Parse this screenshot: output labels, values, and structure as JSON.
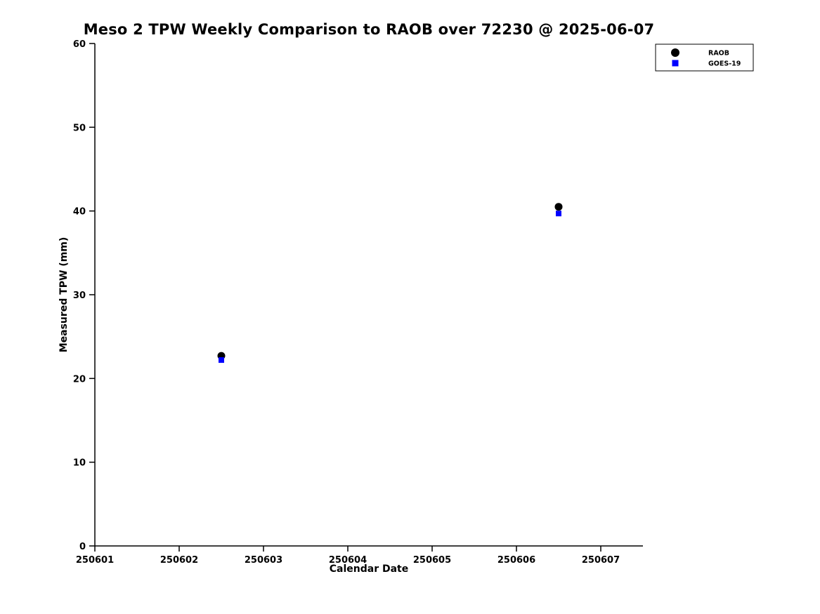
{
  "chart_data": {
    "type": "scatter",
    "title": "Meso 2 TPW Weekly Comparison to RAOB over 72230 @ 2025-06-07",
    "xlabel": "Calendar Date",
    "ylabel": "Measured TPW (mm)",
    "xlim": [
      250601,
      250607.5
    ],
    "ylim": [
      0,
      60
    ],
    "grid": false,
    "legend_position": "top-right",
    "xticks": [
      {
        "value": 250601,
        "label": "250601"
      },
      {
        "value": 250602,
        "label": "250602"
      },
      {
        "value": 250603,
        "label": "250603"
      },
      {
        "value": 250604,
        "label": "250604"
      },
      {
        "value": 250605,
        "label": "250605"
      },
      {
        "value": 250606,
        "label": "250606"
      },
      {
        "value": 250607,
        "label": "250607"
      }
    ],
    "yticks": [
      {
        "value": 0,
        "label": "0"
      },
      {
        "value": 10,
        "label": "10"
      },
      {
        "value": 20,
        "label": "20"
      },
      {
        "value": 30,
        "label": "30"
      },
      {
        "value": 40,
        "label": "40"
      },
      {
        "value": 50,
        "label": "50"
      },
      {
        "value": 60,
        "label": "60"
      }
    ],
    "series": [
      {
        "name": "RAOB",
        "marker": "circle",
        "color": "#000000",
        "size": 5.5,
        "x": [
          250602.5,
          250606.5
        ],
        "y": [
          22.7,
          40.5
        ]
      },
      {
        "name": "GOES-19",
        "marker": "square",
        "color": "#0000ff",
        "size": 8,
        "x": [
          250602.5,
          250606.5
        ],
        "y": [
          22.2,
          39.7
        ]
      }
    ]
  }
}
